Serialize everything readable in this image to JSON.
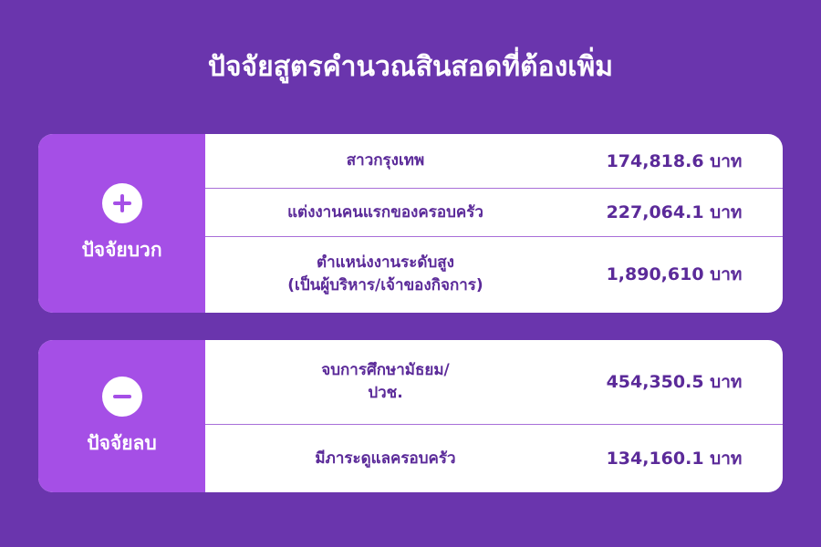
{
  "title": "ปัจจัยสูตรคำนวณสินสอดที่ต้องเพิ่ม",
  "positive": {
    "label": "ปัจจัยบวก",
    "icon": "plus-icon",
    "rows": [
      {
        "name": "สาวกรุงเทพ",
        "value": "174,818.6 บาท"
      },
      {
        "name": "แต่งงานคนแรกของครอบครัว",
        "value": "227,064.1 บาท"
      },
      {
        "name_line1": "ตำแหน่งงานระดับสูง",
        "name_line2": "(เป็นผู้บริหาร/เจ้าของกิจการ)",
        "value": "1,890,610 บาท"
      }
    ]
  },
  "negative": {
    "label": "ปัจจัยลบ",
    "icon": "minus-icon",
    "rows": [
      {
        "name_line1": "จบการศึกษามัธยม/",
        "name_line2": "ปวช.",
        "value": "454,350.5 บาท"
      },
      {
        "name": "มีภาระดูแลครอบครัว",
        "value": "134,160.1 บาท"
      }
    ]
  },
  "colors": {
    "background": "#6a35ad",
    "side_panel": "#a54fe6",
    "text": "#5b2a99",
    "divider": "#a86fd8"
  }
}
